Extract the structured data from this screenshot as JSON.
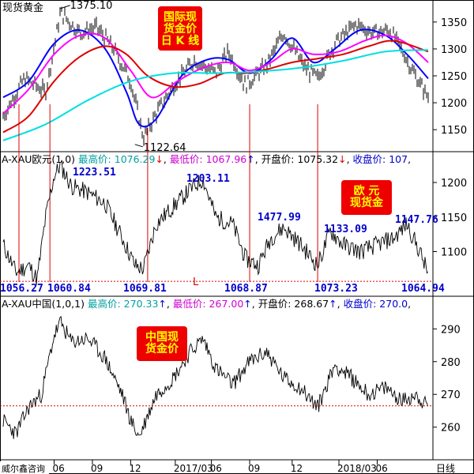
{
  "chart_data": [
    {
      "type": "candlestick",
      "title": "现货黄金",
      "badge": [
        "国际现",
        "货金价",
        "日 K 线"
      ],
      "ylim": [
        1115,
        1385
      ],
      "y_ticks": [
        1150,
        1200,
        1250,
        1300,
        1350
      ],
      "annotations": [
        {
          "label": "1375.10",
          "x": 0.135,
          "y": 1375.1
        },
        {
          "label": "1122.64",
          "x": 0.31,
          "y": 1122.64
        }
      ],
      "series": [
        {
          "name": "",
          "color": "#000000",
          "x": [
            0,
            0.05,
            0.1,
            0.135,
            0.18,
            0.22,
            0.26,
            0.3,
            0.33,
            0.36,
            0.4,
            0.45,
            0.5,
            0.53,
            0.57,
            0.62,
            0.66,
            0.71,
            0.74,
            0.78,
            0.83,
            0.87,
            0.91,
            0.94,
            0.97,
            1.0
          ],
          "y": [
            1175,
            1245,
            1220,
            1368,
            1330,
            1340,
            1300,
            1240,
            1135,
            1180,
            1230,
            1280,
            1255,
            1295,
            1232,
            1270,
            1330,
            1265,
            1245,
            1310,
            1345,
            1330,
            1335,
            1295,
            1250,
            1210
          ]
        },
        {
          "name": "",
          "color": "#0000ff",
          "x": [
            0,
            0.06,
            0.12,
            0.18,
            0.24,
            0.29,
            0.32,
            0.36,
            0.42,
            0.48,
            0.53,
            0.58,
            0.63,
            0.68,
            0.73,
            0.78,
            0.84,
            0.9,
            0.95,
            1.0
          ],
          "y": [
            1210,
            1240,
            1310,
            1335,
            1300,
            1220,
            1160,
            1170,
            1250,
            1280,
            1280,
            1255,
            1280,
            1320,
            1275,
            1300,
            1335,
            1325,
            1290,
            1245
          ]
        },
        {
          "name": "",
          "color": "#ff00ff",
          "x": [
            0,
            0.06,
            0.12,
            0.18,
            0.24,
            0.3,
            0.35,
            0.41,
            0.47,
            0.53,
            0.58,
            0.63,
            0.68,
            0.73,
            0.79,
            0.85,
            0.9,
            0.95,
            1.0
          ],
          "y": [
            1180,
            1225,
            1290,
            1325,
            1320,
            1260,
            1210,
            1240,
            1265,
            1275,
            1260,
            1275,
            1300,
            1290,
            1295,
            1315,
            1325,
            1310,
            1275
          ]
        },
        {
          "name": "",
          "color": "#dd0000",
          "x": [
            0,
            0.06,
            0.12,
            0.18,
            0.24,
            0.29,
            0.34,
            0.4,
            0.46,
            0.52,
            0.57,
            0.62,
            0.68,
            0.74,
            0.8,
            0.86,
            0.92,
            1.0
          ],
          "y": [
            1145,
            1175,
            1240,
            1285,
            1305,
            1290,
            1250,
            1230,
            1235,
            1255,
            1255,
            1262,
            1275,
            1282,
            1290,
            1305,
            1315,
            1295
          ]
        },
        {
          "name": "",
          "color": "#00e0e0",
          "x": [
            0,
            0.1,
            0.2,
            0.3,
            0.4,
            0.5,
            0.6,
            0.7,
            0.8,
            0.9,
            1.0
          ],
          "y": [
            1130,
            1160,
            1205,
            1240,
            1255,
            1255,
            1258,
            1265,
            1278,
            1295,
            1298
          ]
        }
      ]
    },
    {
      "type": "line",
      "title": "A-XAU欧元(1,0)",
      "badge": [
        "欧  元",
        "现货金"
      ],
      "info": [
        {
          "label": "最高价:",
          "value": "1076.29",
          "arrow": "↓",
          "color": "#00a0a0"
        },
        {
          "label": "最低价:",
          "value": "1067.96",
          "arrow": "↑",
          "color": "#d000d0"
        },
        {
          "label": "开盘价:",
          "value": "1075.32",
          "arrow": "↓",
          "color": "#000000"
        },
        {
          "label": "收盘价:",
          "value": "107",
          "arrow": "",
          "color": "#0000cc"
        }
      ],
      "ylim": [
        1040,
        1240
      ],
      "y_ticks": [
        1100,
        1150,
        1200
      ],
      "reference_line": {
        "value": 1057,
        "marker": "L"
      },
      "annotations": [
        {
          "label": "1223.51",
          "x": 0.13,
          "y": 1223.51
        },
        {
          "label": "1203.11",
          "x": 0.46,
          "y": 1203.11
        },
        {
          "label": "1477.99",
          "x": 0.63,
          "y": 1160
        },
        {
          "label": "1133.09",
          "x": 0.77,
          "y": 1133.09
        },
        {
          "label": "1147.76",
          "x": 0.94,
          "y": 1147.76
        },
        {
          "label": "1056.27",
          "x": 0.0,
          "y": 1056.27
        },
        {
          "label": "1060.84",
          "x": 0.11,
          "y": 1060.84
        },
        {
          "label": "1069.81",
          "x": 0.34,
          "y": 1069.81
        },
        {
          "label": "1068.87",
          "x": 0.58,
          "y": 1068.87
        },
        {
          "label": "1073.23",
          "x": 0.74,
          "y": 1073.23
        },
        {
          "label": "1064.94",
          "x": 0.985,
          "y": 1064.94
        }
      ],
      "x": [
        0,
        0.03,
        0.06,
        0.08,
        0.1,
        0.12,
        0.135,
        0.16,
        0.2,
        0.24,
        0.28,
        0.31,
        0.33,
        0.36,
        0.4,
        0.44,
        0.47,
        0.5,
        0.54,
        0.57,
        0.6,
        0.63,
        0.66,
        0.7,
        0.74,
        0.77,
        0.8,
        0.84,
        0.88,
        0.92,
        0.95,
        0.98,
        1.0
      ],
      "values": [
        1110,
        1070,
        1080,
        1060,
        1150,
        1210,
        1225,
        1195,
        1185,
        1170,
        1120,
        1080,
        1075,
        1140,
        1165,
        1190,
        1205,
        1150,
        1140,
        1090,
        1080,
        1120,
        1135,
        1110,
        1080,
        1130,
        1110,
        1100,
        1110,
        1120,
        1140,
        1100,
        1068
      ]
    },
    {
      "type": "line",
      "title": "A-XAU中国(1,0,1)",
      "badge": [
        "中国现",
        "货金价"
      ],
      "info": [
        {
          "label": "最高价:",
          "value": "270.33",
          "arrow": "↑",
          "color": "#00a0a0"
        },
        {
          "label": "最低价:",
          "value": "267.00",
          "arrow": "↑",
          "color": "#d000d0"
        },
        {
          "label": "开盘价:",
          "value": "268.67",
          "arrow": "↑",
          "color": "#000000"
        },
        {
          "label": "收盘价:",
          "value": "270.0",
          "arrow": "",
          "color": "#0000cc"
        }
      ],
      "ylim": [
        251,
        299
      ],
      "y_ticks": [
        260,
        270,
        280,
        290
      ],
      "reference_line": {
        "value": 266.5
      },
      "x_ticks": [
        {
          "label": "06",
          "x": 0.12
        },
        {
          "label": "09",
          "x": 0.21
        },
        {
          "label": "12",
          "x": 0.3
        },
        {
          "label": "2017/03",
          "x": 0.405
        },
        {
          "label": "06",
          "x": 0.49
        },
        {
          "label": "09",
          "x": 0.58
        },
        {
          "label": "12",
          "x": 0.68
        },
        {
          "label": "2018/03",
          "x": 0.79
        },
        {
          "label": "06",
          "x": 0.88
        }
      ],
      "x_unit": "日线",
      "x": [
        0,
        0.03,
        0.06,
        0.09,
        0.12,
        0.135,
        0.16,
        0.2,
        0.24,
        0.28,
        0.3,
        0.32,
        0.36,
        0.4,
        0.44,
        0.47,
        0.5,
        0.54,
        0.58,
        0.62,
        0.66,
        0.7,
        0.74,
        0.78,
        0.82,
        0.86,
        0.9,
        0.94,
        0.97,
        1.0
      ],
      "values": [
        262,
        258,
        266,
        270,
        288,
        292,
        286,
        287,
        281,
        270,
        262,
        257,
        270,
        275,
        283,
        287,
        278,
        273,
        280,
        283,
        275,
        272,
        266,
        279,
        275,
        270,
        272,
        268,
        270,
        266
      ]
    }
  ],
  "source": "威尔鑫咨询"
}
